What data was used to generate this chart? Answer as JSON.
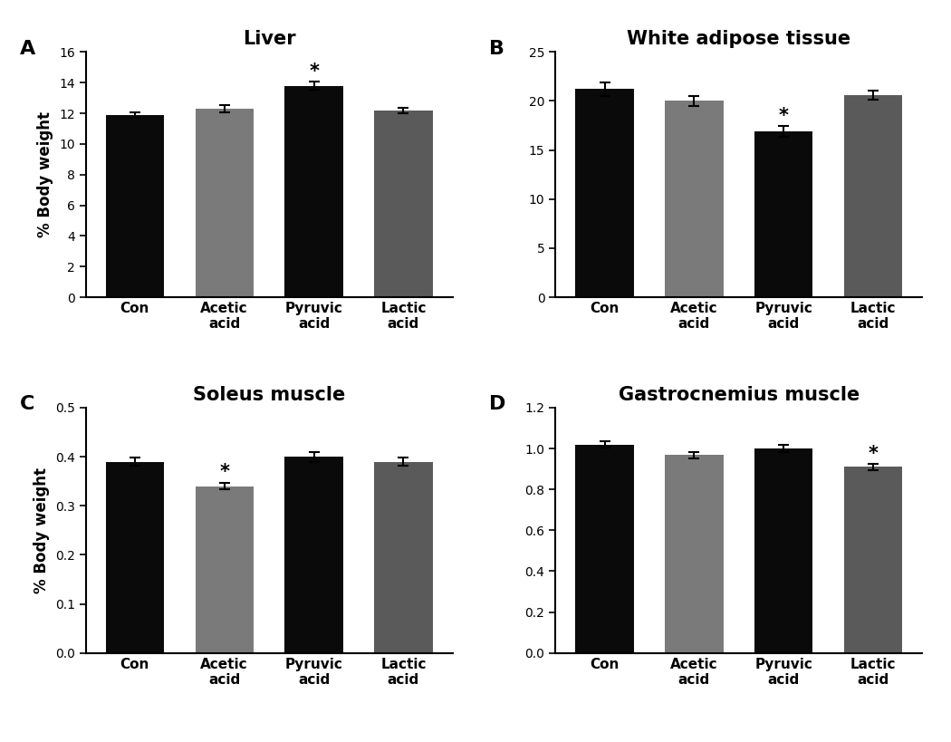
{
  "panels": [
    {
      "label": "A",
      "title": "Liver",
      "ylabel": "% Body weight",
      "values": [
        11.9,
        12.3,
        13.8,
        12.2
      ],
      "errors": [
        0.18,
        0.22,
        0.28,
        0.18
      ],
      "colors": [
        "#0a0a0a",
        "#7a7a7a",
        "#0a0a0a",
        "#5a5a5a"
      ],
      "sig": [
        false,
        false,
        true,
        false
      ],
      "sig_pos": [
        null,
        null,
        14.15,
        null
      ],
      "ylim": [
        0,
        16
      ],
      "yticks": [
        0,
        2,
        4,
        6,
        8,
        10,
        12,
        14,
        16
      ]
    },
    {
      "label": "B",
      "title": "White adipose tissue",
      "ylabel": "",
      "values": [
        21.2,
        20.0,
        16.9,
        20.6
      ],
      "errors": [
        0.65,
        0.5,
        0.55,
        0.5
      ],
      "colors": [
        "#0a0a0a",
        "#7a7a7a",
        "#0a0a0a",
        "#5a5a5a"
      ],
      "sig": [
        false,
        false,
        true,
        false
      ],
      "sig_pos": [
        null,
        null,
        17.55,
        null
      ],
      "ylim": [
        0,
        25
      ],
      "yticks": [
        0,
        5,
        10,
        15,
        20,
        25
      ]
    },
    {
      "label": "C",
      "title": "Soleus muscle",
      "ylabel": "% Body weight",
      "values": [
        0.39,
        0.34,
        0.4,
        0.39
      ],
      "errors": [
        0.008,
        0.007,
        0.01,
        0.009
      ],
      "colors": [
        "#0a0a0a",
        "#7a7a7a",
        "#0a0a0a",
        "#5a5a5a"
      ],
      "sig": [
        false,
        true,
        false,
        false
      ],
      "sig_pos": [
        null,
        0.35,
        null,
        null
      ],
      "ylim": [
        0,
        0.5
      ],
      "yticks": [
        0.0,
        0.1,
        0.2,
        0.3,
        0.4,
        0.5
      ]
    },
    {
      "label": "D",
      "title": "Gastrocnemius muscle",
      "ylabel": "",
      "values": [
        1.02,
        0.968,
        1.0,
        0.91
      ],
      "errors": [
        0.014,
        0.016,
        0.016,
        0.016
      ],
      "colors": [
        "#0a0a0a",
        "#7a7a7a",
        "#0a0a0a",
        "#5a5a5a"
      ],
      "sig": [
        false,
        false,
        false,
        true
      ],
      "sig_pos": [
        null,
        null,
        null,
        0.93
      ],
      "ylim": [
        0,
        1.2
      ],
      "yticks": [
        0.0,
        0.2,
        0.4,
        0.6,
        0.8,
        1.0,
        1.2
      ]
    }
  ],
  "categories": [
    "Con",
    "Acetic\nacid",
    "Pyruvic\nacid",
    "Lactic\nacid"
  ],
  "bar_width": 0.65,
  "background_color": "#ffffff"
}
